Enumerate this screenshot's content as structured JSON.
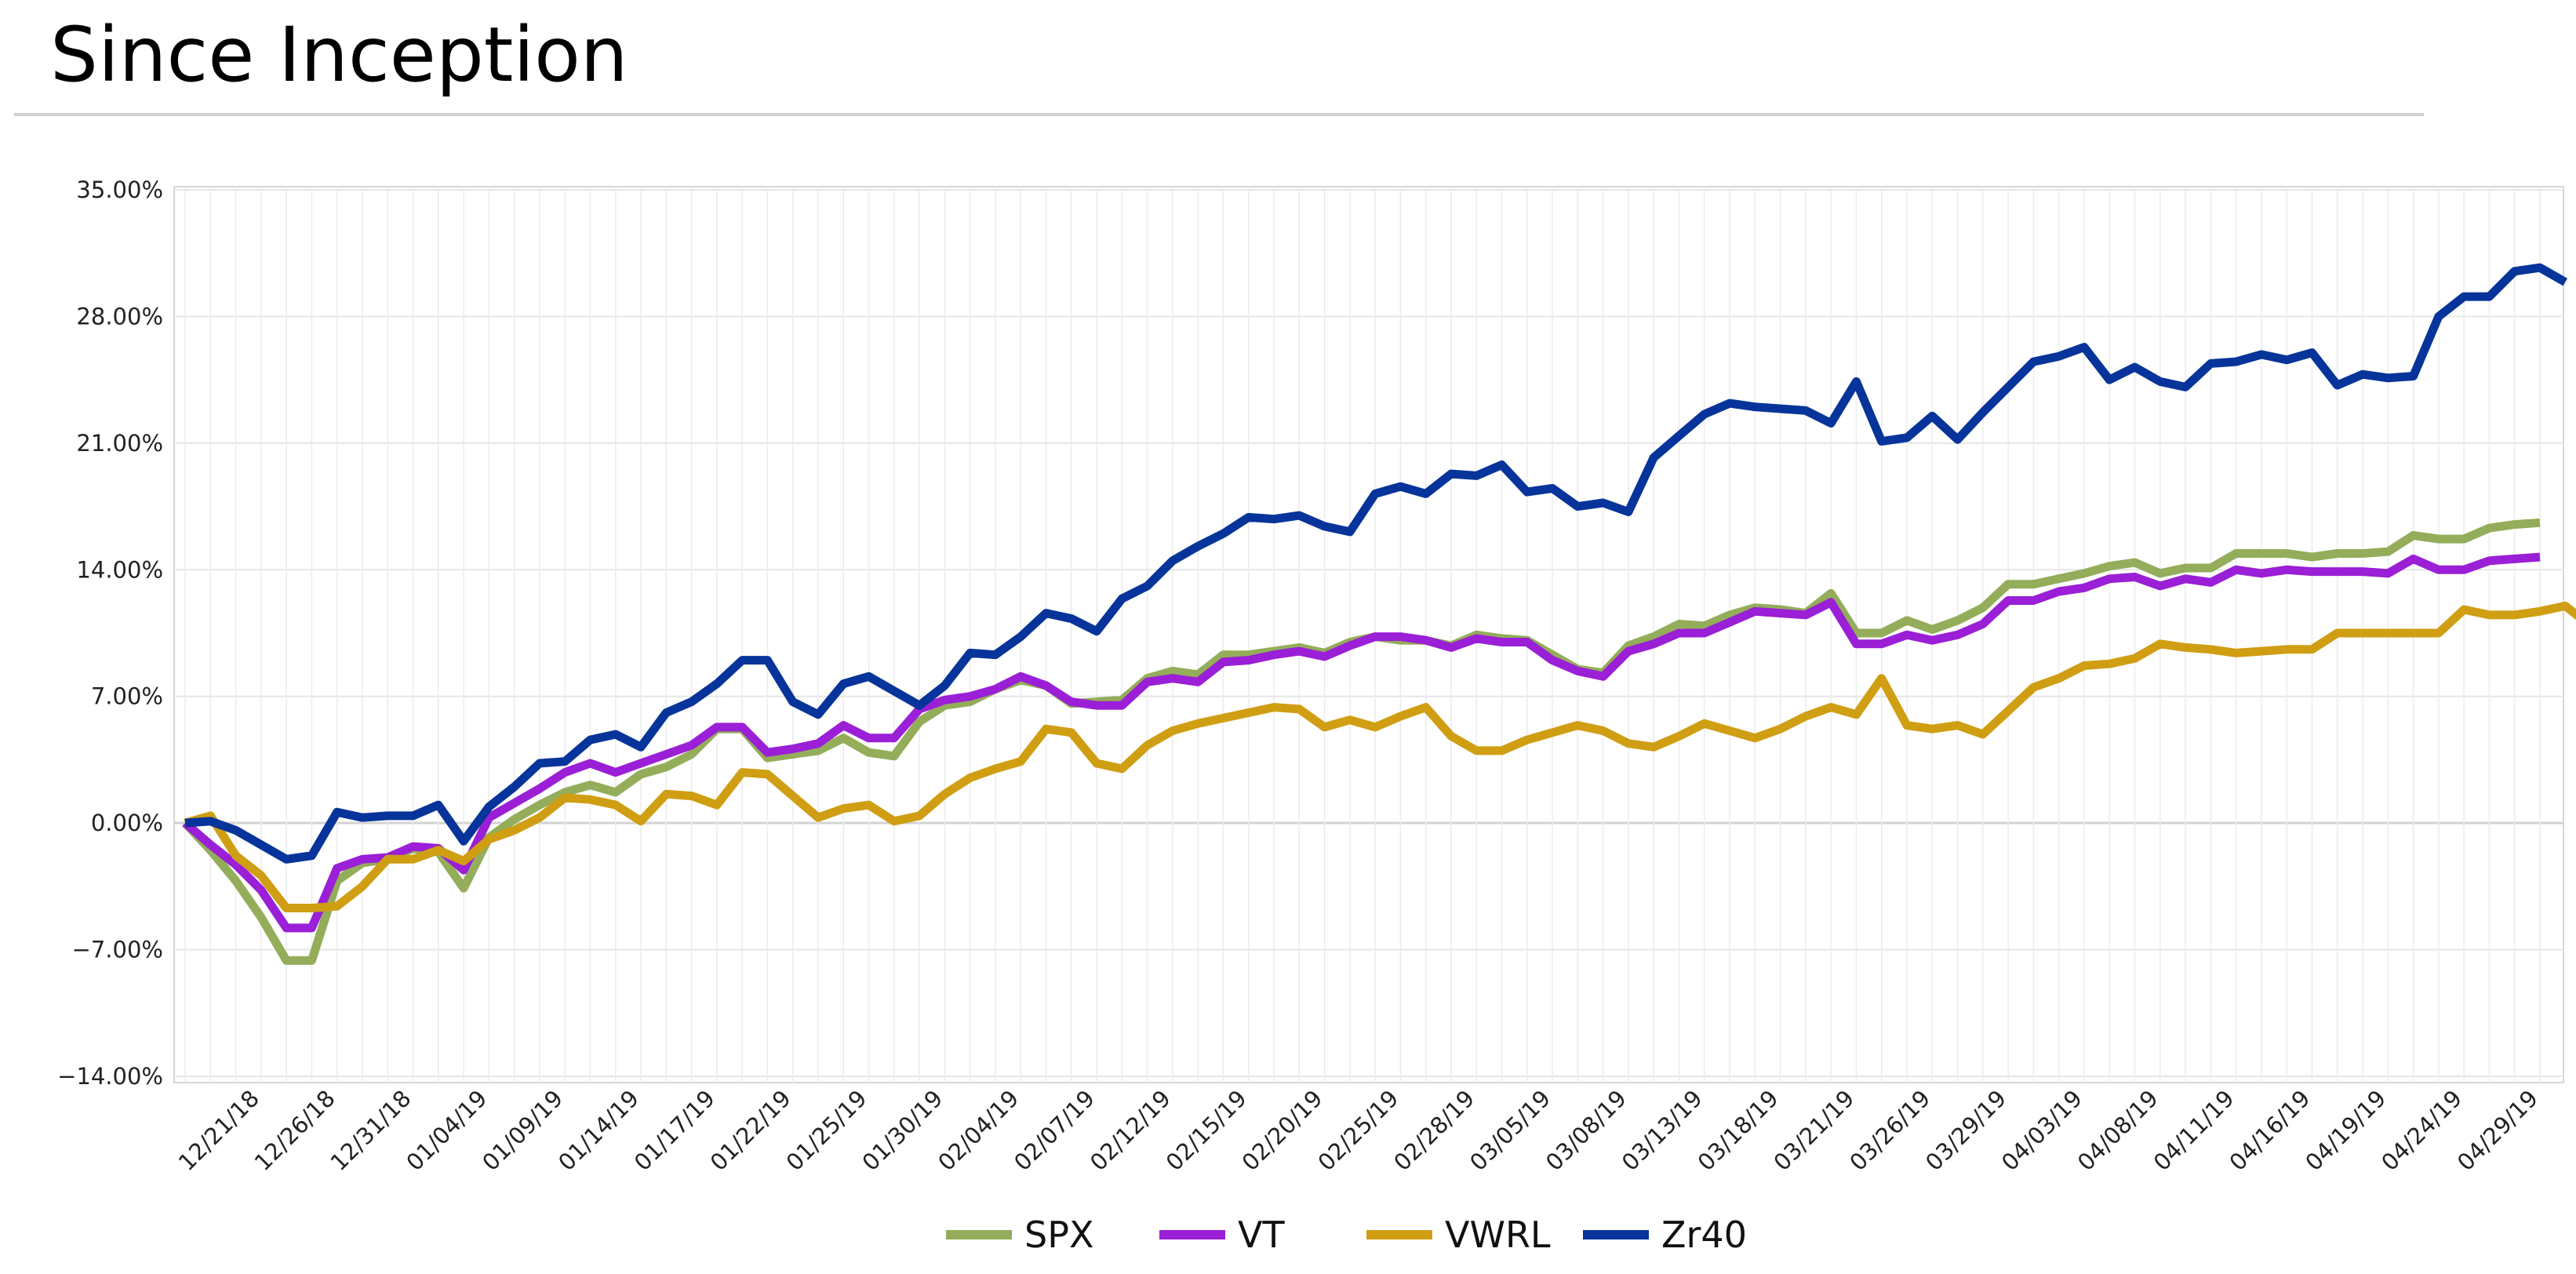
{
  "page": {
    "title": "Since Inception"
  },
  "chart_data": {
    "type": "line",
    "title": "",
    "xlabel": "",
    "ylabel": "",
    "ylim": [
      -14,
      35
    ],
    "y_ticks": [
      35,
      28,
      21,
      14,
      7,
      0,
      -7,
      -14
    ],
    "y_tick_labels": [
      "35.00%",
      "28.00%",
      "21.00%",
      "14.00%",
      "7.00%",
      "0.00%",
      "−7.00%",
      "−14.00%"
    ],
    "x_tick_labels": [
      "12/21/18",
      "12/26/18",
      "12/31/18",
      "01/04/19",
      "01/09/19",
      "01/14/19",
      "01/17/19",
      "01/22/19",
      "01/25/19",
      "01/30/19",
      "02/04/19",
      "02/07/19",
      "02/12/19",
      "02/15/19",
      "02/20/19",
      "02/25/19",
      "02/28/19",
      "03/05/19",
      "03/08/19",
      "03/13/19",
      "03/18/19",
      "03/21/19",
      "03/26/19",
      "03/29/19",
      "04/03/19",
      "04/08/19",
      "04/11/19",
      "04/16/19",
      "04/19/19",
      "04/24/19",
      "04/29/19"
    ],
    "grid": true,
    "legend_position": "bottom-center",
    "series": [
      {
        "name": "SPX",
        "color": "#93ad5a",
        "values": [
          0.0,
          -1.5,
          -3.2,
          -5.2,
          -7.6,
          -7.6,
          -3.2,
          -2.2,
          -2.0,
          -1.4,
          -1.6,
          -3.6,
          -0.8,
          0.2,
          1.0,
          1.7,
          2.1,
          1.7,
          2.7,
          3.1,
          3.8,
          5.2,
          5.2,
          3.6,
          3.8,
          4.0,
          4.7,
          3.9,
          3.7,
          5.6,
          6.5,
          6.7,
          7.4,
          7.9,
          7.6,
          6.6,
          6.7,
          6.8,
          8.0,
          8.4,
          8.2,
          9.3,
          9.3,
          9.5,
          9.7,
          9.4,
          10.0,
          10.3,
          10.1,
          10.1,
          9.8,
          10.4,
          10.2,
          10.1,
          9.3,
          8.5,
          8.3,
          9.8,
          10.3,
          11.0,
          10.9,
          11.5,
          11.9,
          11.8,
          11.6,
          12.7,
          10.5,
          10.5,
          11.2,
          10.7,
          11.2,
          11.9,
          13.2,
          13.2,
          13.5,
          13.8,
          14.2,
          14.4,
          13.8,
          14.1,
          14.1,
          14.9,
          14.9,
          14.9,
          14.7,
          14.9,
          14.9,
          15.0,
          15.9,
          15.7,
          15.7,
          16.3,
          16.5,
          16.6
        ]
      },
      {
        "name": "VT",
        "color": "#9a1fd6",
        "values": [
          0.0,
          -1.2,
          -2.3,
          -3.7,
          -5.8,
          -5.8,
          -2.5,
          -2.0,
          -1.9,
          -1.3,
          -1.4,
          -2.6,
          0.3,
          1.1,
          1.9,
          2.8,
          3.3,
          2.8,
          3.3,
          3.8,
          4.3,
          5.3,
          5.3,
          3.9,
          4.1,
          4.4,
          5.4,
          4.7,
          4.7,
          6.3,
          6.8,
          7.0,
          7.4,
          8.1,
          7.6,
          6.7,
          6.5,
          6.5,
          7.8,
          8.0,
          7.8,
          8.9,
          9.0,
          9.3,
          9.5,
          9.2,
          9.8,
          10.3,
          10.3,
          10.1,
          9.7,
          10.2,
          10.0,
          10.0,
          9.0,
          8.4,
          8.1,
          9.5,
          9.9,
          10.5,
          10.5,
          11.1,
          11.7,
          11.6,
          11.5,
          12.2,
          9.9,
          9.9,
          10.4,
          10.1,
          10.4,
          11.0,
          12.3,
          12.3,
          12.8,
          13.0,
          13.5,
          13.6,
          13.1,
          13.5,
          13.3,
          14.0,
          13.8,
          14.0,
          13.9,
          13.9,
          13.9,
          13.8,
          14.6,
          14.0,
          14.0,
          14.5,
          14.6,
          14.7
        ]
      },
      {
        "name": "VWRL",
        "color": "#d09e13",
        "values": [
          0.0,
          0.4,
          -1.8,
          -2.9,
          -4.7,
          -4.7,
          -4.6,
          -3.5,
          -2.0,
          -2.0,
          -1.5,
          -2.1,
          -0.9,
          -0.4,
          0.3,
          1.4,
          1.3,
          1.0,
          0.1,
          1.6,
          1.5,
          1.0,
          2.8,
          2.7,
          1.5,
          0.3,
          0.8,
          1.0,
          0.1,
          0.4,
          1.6,
          2.5,
          3.0,
          3.4,
          5.2,
          5.0,
          3.3,
          3.0,
          4.3,
          5.1,
          5.5,
          5.8,
          6.1,
          6.4,
          6.3,
          5.3,
          5.7,
          5.3,
          5.9,
          6.4,
          4.8,
          4.0,
          4.0,
          4.6,
          5.0,
          5.4,
          5.1,
          4.4,
          4.2,
          4.8,
          5.5,
          5.1,
          4.7,
          5.2,
          5.9,
          6.4,
          6.0,
          8.0,
          5.4,
          5.2,
          5.4,
          4.9,
          6.2,
          7.5,
          8.0,
          8.7,
          8.8,
          9.1,
          9.9,
          9.7,
          9.6,
          9.4,
          9.5,
          9.6,
          9.6,
          10.5,
          10.5,
          10.5,
          10.5,
          10.5,
          11.8,
          11.5,
          11.5,
          11.7,
          12.0,
          10.9
        ]
      },
      {
        "name": "Zr40",
        "color": "#06349a",
        "values": [
          0.0,
          0.1,
          -0.4,
          -1.2,
          -2.0,
          -1.8,
          0.6,
          0.3,
          0.4,
          0.4,
          1.0,
          -1.0,
          0.9,
          2.0,
          3.3,
          3.4,
          4.6,
          4.9,
          4.2,
          6.1,
          6.7,
          7.7,
          9.0,
          9.0,
          6.7,
          6.0,
          7.7,
          8.1,
          7.3,
          6.5,
          7.6,
          9.4,
          9.3,
          10.3,
          11.6,
          11.3,
          10.6,
          12.4,
          13.1,
          14.5,
          15.3,
          16.0,
          16.9,
          16.8,
          17.0,
          16.4,
          16.1,
          18.2,
          18.6,
          18.2,
          19.3,
          19.2,
          19.8,
          18.3,
          18.5,
          17.5,
          17.7,
          17.2,
          20.2,
          21.4,
          22.6,
          23.2,
          23.0,
          22.9,
          22.8,
          22.1,
          24.4,
          21.1,
          21.3,
          22.5,
          21.2,
          22.7,
          24.1,
          25.5,
          25.8,
          26.3,
          24.5,
          25.2,
          24.4,
          24.1,
          25.4,
          25.5,
          25.9,
          25.6,
          26.0,
          24.2,
          24.8,
          24.6,
          24.7,
          28.0,
          29.1,
          29.1,
          30.5,
          30.7,
          29.9
        ]
      }
    ]
  }
}
